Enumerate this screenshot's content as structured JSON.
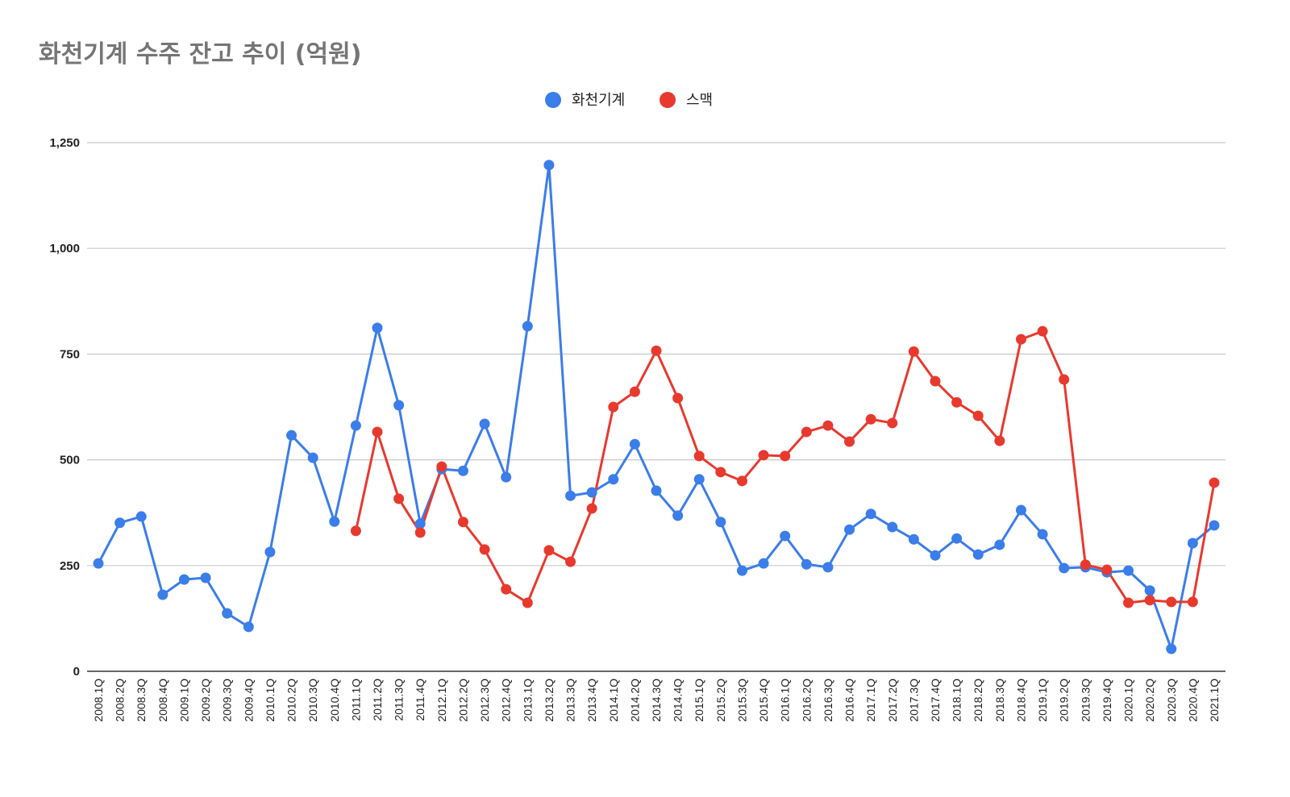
{
  "chart_data": {
    "type": "line",
    "title": "화천기계 수주 잔고 추이 (억원)",
    "xlabel": "",
    "ylabel": "",
    "ylim": [
      0,
      1250
    ],
    "yticks": [
      "0",
      "250",
      "500",
      "750",
      "1,000",
      "1,250"
    ],
    "ytick_values": [
      0,
      250,
      500,
      750,
      1000,
      1250
    ],
    "grid": true,
    "legend_position": "top",
    "categories": [
      "2008.1Q",
      "2008.2Q",
      "2008.3Q",
      "2008.4Q",
      "2009.1Q",
      "2009.2Q",
      "2009.3Q",
      "2009.4Q",
      "2010.1Q",
      "2010.2Q",
      "2010.3Q",
      "2010.4Q",
      "2011.1Q",
      "2011.2Q",
      "2011.3Q",
      "2011.4Q",
      "2012.1Q",
      "2012.2Q",
      "2012.3Q",
      "2012.4Q",
      "2013.1Q",
      "2013.2Q",
      "2013.3Q",
      "2013.4Q",
      "2014.1Q",
      "2014.2Q",
      "2014.3Q",
      "2014.4Q",
      "2015.1Q",
      "2015.2Q",
      "2015.3Q",
      "2015.4Q",
      "2016.1Q",
      "2016.2Q",
      "2016.3Q",
      "2016.4Q",
      "2017.1Q",
      "2017.2Q",
      "2017.3Q",
      "2017.4Q",
      "2018.1Q",
      "2018.2Q",
      "2018.3Q",
      "2018.4Q",
      "2019.1Q",
      "2019.2Q",
      "2019.3Q",
      "2019.4Q",
      "2020.1Q",
      "2020.2Q",
      "2020.3Q",
      "2020.4Q",
      "2021.1Q"
    ],
    "series": [
      {
        "name": "화천기계",
        "color": "#3b7de9",
        "values": [
          255,
          351,
          366,
          181,
          217,
          221,
          137,
          105,
          282,
          558,
          505,
          354,
          581,
          812,
          629,
          349,
          478,
          474,
          585,
          459,
          816,
          1197,
          415,
          423,
          454,
          537,
          427,
          368,
          454,
          353,
          238,
          255,
          320,
          253,
          246,
          335,
          372,
          341,
          312,
          274,
          314,
          276,
          299,
          381,
          324,
          244,
          246,
          234,
          238,
          191,
          53,
          303,
          345
        ]
      },
      {
        "name": "스맥",
        "color": "#e8392e",
        "values": [
          null,
          null,
          null,
          null,
          null,
          null,
          null,
          null,
          null,
          null,
          null,
          null,
          332,
          566,
          408,
          328,
          484,
          353,
          288,
          194,
          162,
          286,
          259,
          385,
          625,
          661,
          758,
          646,
          509,
          471,
          450,
          511,
          509,
          566,
          581,
          543,
          596,
          587,
          756,
          686,
          636,
          604,
          545,
          785,
          804,
          690,
          252,
          240,
          162,
          168,
          164,
          164,
          446
        ]
      }
    ]
  }
}
